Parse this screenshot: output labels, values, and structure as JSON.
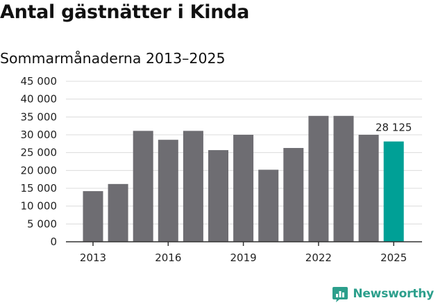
{
  "title": "Antal gästnätter i Kinda",
  "subtitle": "Sommarmånaderna 2013–2025",
  "colors": {
    "bar": "#6e6d72",
    "highlight": "#00a096",
    "grid": "#dcdcdc",
    "axis": "#333333",
    "brand": "#2c9f8c"
  },
  "brand": {
    "name": "Newsworthy",
    "icon": "bar-chart-logo-icon"
  },
  "chart_data": {
    "type": "bar",
    "title": "Antal gästnätter i Kinda",
    "subtitle": "Sommarmånaderna 2013–2025",
    "xlabel": "",
    "ylabel": "",
    "categories": [
      "2013",
      "2014",
      "2015",
      "2016",
      "2017",
      "2018",
      "2019",
      "2020",
      "2021",
      "2022",
      "2023",
      "2024",
      "2025"
    ],
    "values": [
      14200,
      16200,
      31100,
      28600,
      31100,
      25700,
      30000,
      20200,
      26300,
      35300,
      35300,
      30000,
      28125
    ],
    "ylim": [
      0,
      45000
    ],
    "yticks": [
      0,
      5000,
      10000,
      15000,
      20000,
      25000,
      30000,
      35000,
      40000,
      45000
    ],
    "ytick_labels": [
      "0",
      "5 000",
      "10 000",
      "15 000",
      "20 000",
      "25 000",
      "30 000",
      "35 000",
      "40 000",
      "45 000"
    ],
    "xtick_labels": [
      "2013",
      "2016",
      "2019",
      "2022",
      "2025"
    ],
    "highlight_category": "2025",
    "annotations": [
      {
        "category": "2025",
        "text": "28 125"
      }
    ],
    "grid": true,
    "legend": "none"
  }
}
